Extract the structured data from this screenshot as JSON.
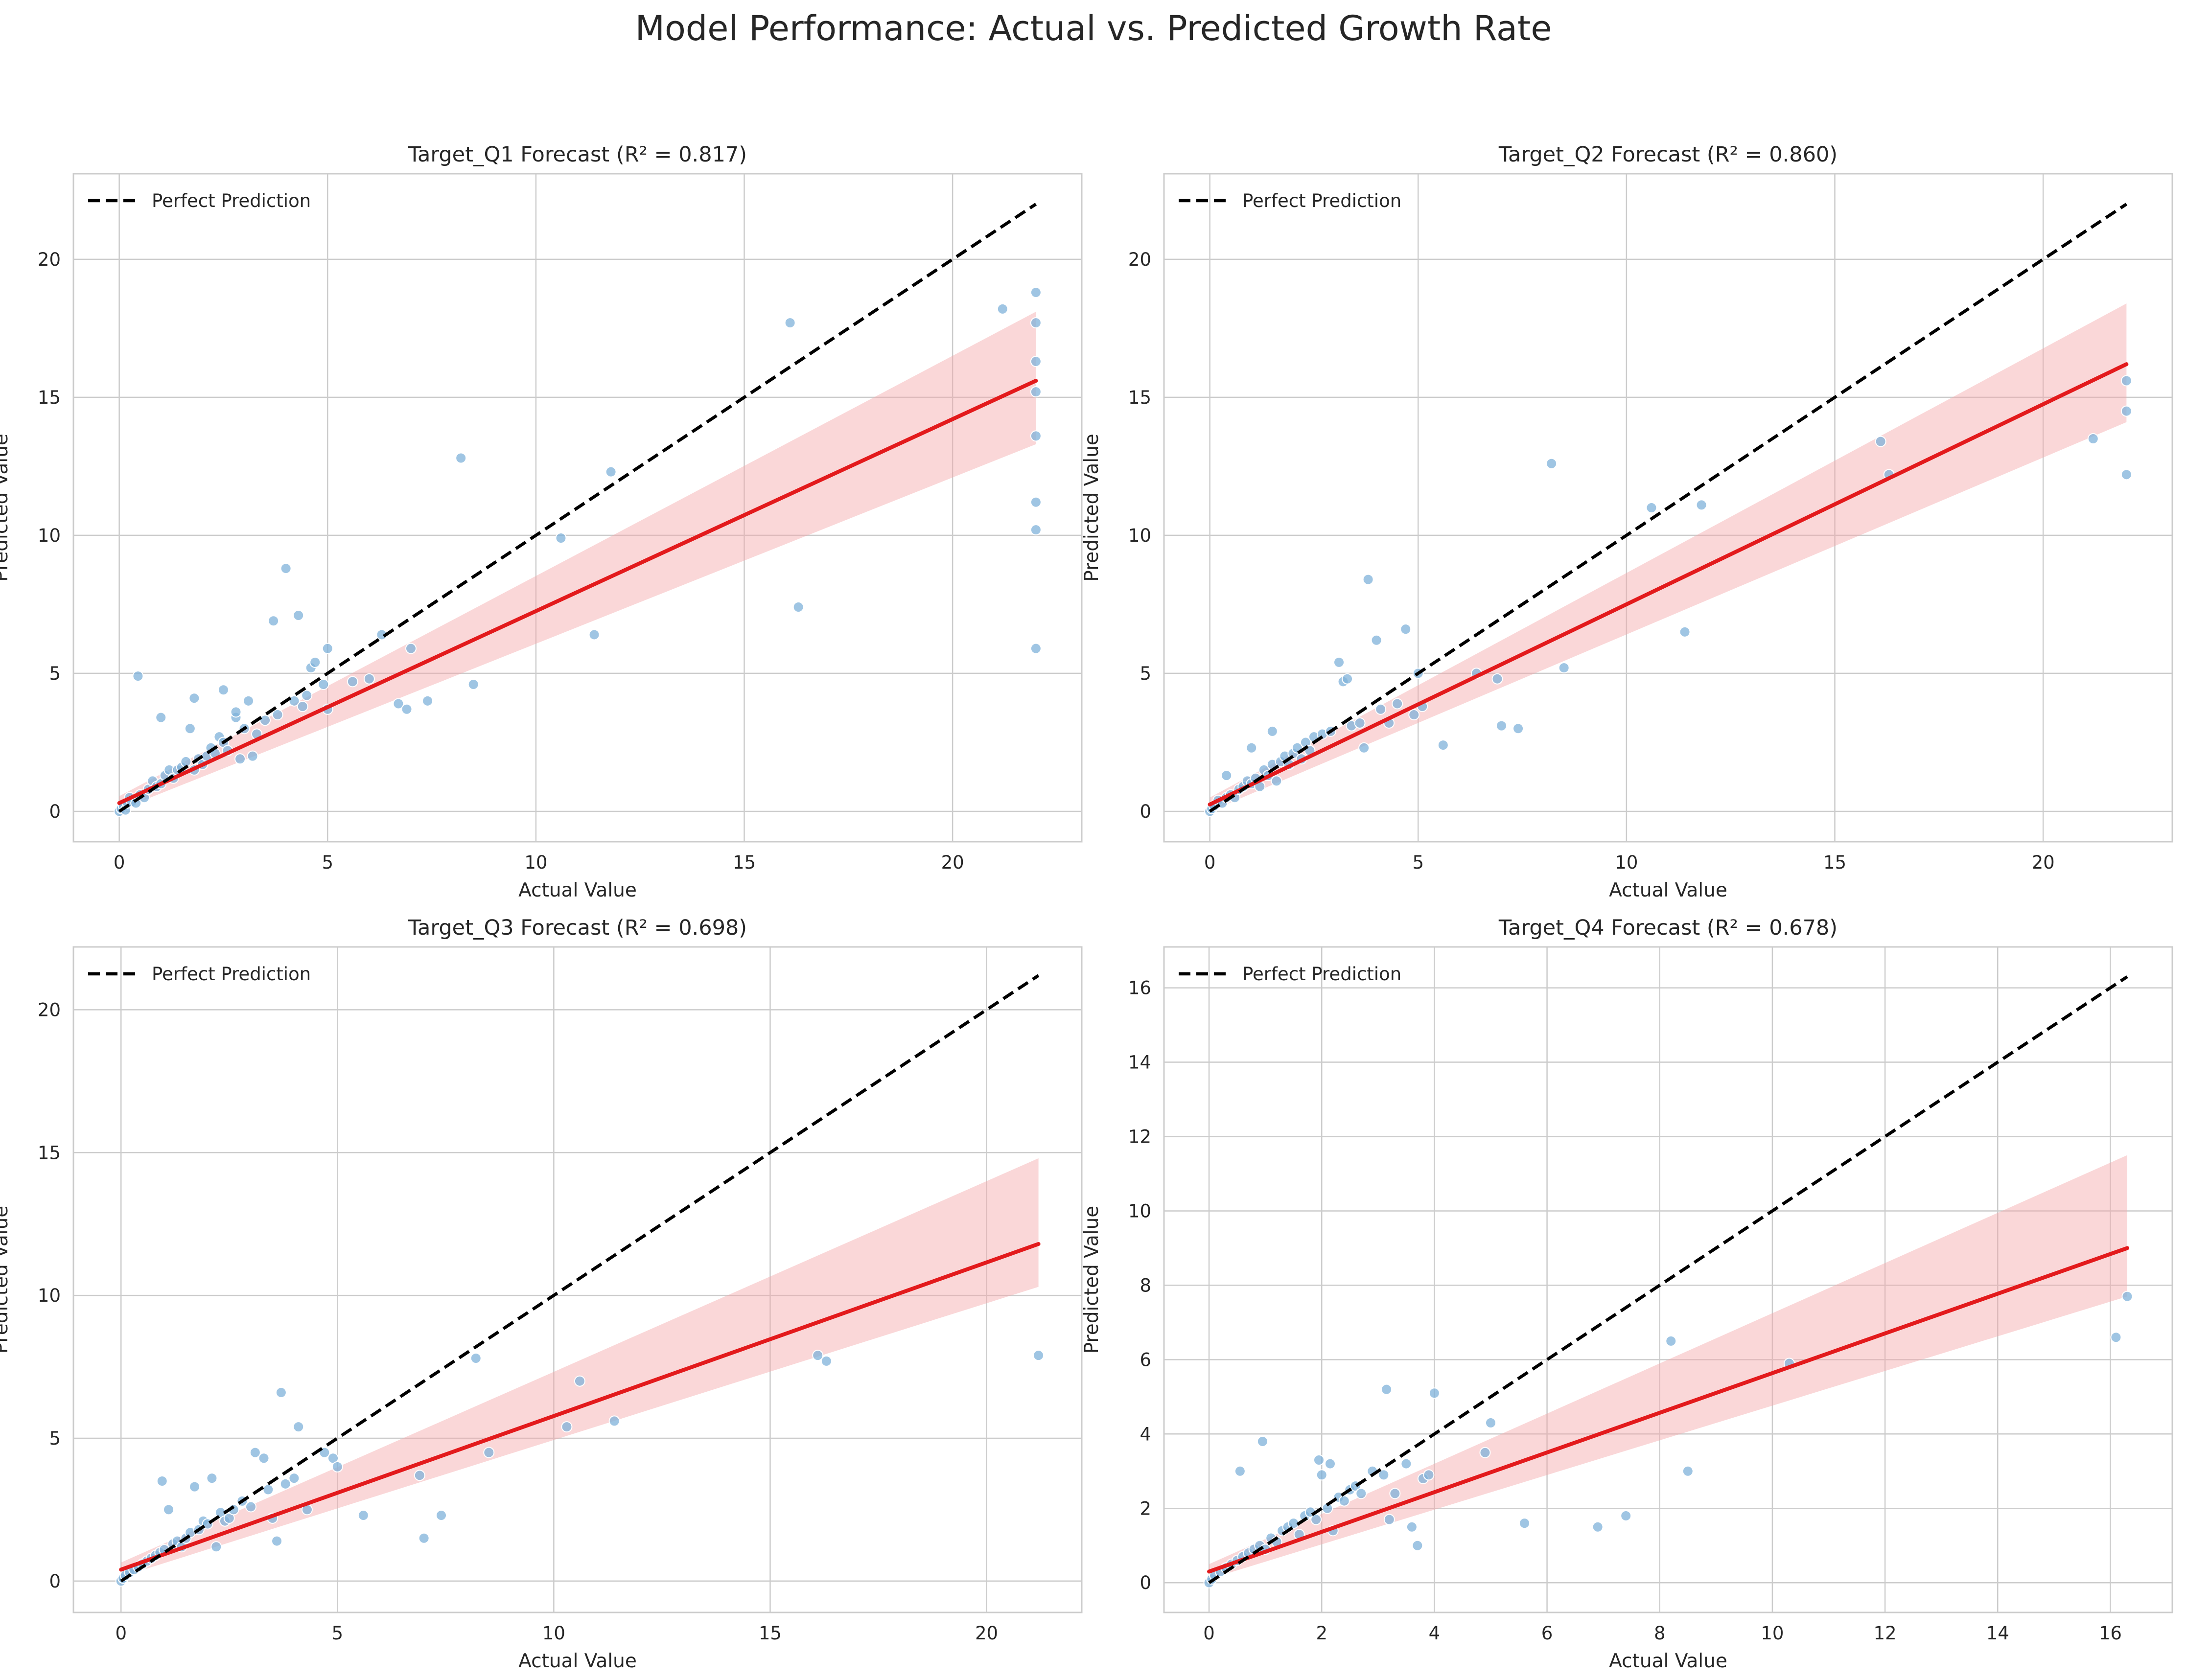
{
  "figure_title": "Model Performance: Actual vs. Predicted Growth Rate",
  "chart_data": [
    {
      "type": "scatter",
      "title": "Target_Q1 Forecast (R² = 0.817)",
      "xlabel": "Actual Value",
      "ylabel": "Predicted Value",
      "xlim": [
        -1.1,
        23.1
      ],
      "ylim": [
        -1.1,
        23.1
      ],
      "xticks": [
        0,
        5,
        10,
        15,
        20
      ],
      "yticks": [
        0,
        5,
        10,
        15,
        20
      ],
      "grid": true,
      "legend": {
        "position": "top-left",
        "entries": [
          "Perfect Prediction"
        ]
      },
      "perfect_line": [
        [
          0,
          0
        ],
        [
          22,
          22
        ]
      ],
      "regression": {
        "x": [
          0,
          22
        ],
        "y": [
          0.3,
          15.6
        ],
        "ci_low_end": 13.3,
        "ci_high_end": 18.1,
        "ci_low_start": 0.05,
        "ci_high_start": 0.55
      },
      "points": [
        [
          0,
          0
        ],
        [
          0.05,
          0.1
        ],
        [
          0.1,
          0.2
        ],
        [
          0.15,
          0.05
        ],
        [
          0.2,
          0.3
        ],
        [
          0.25,
          0.5
        ],
        [
          0.3,
          0.35
        ],
        [
          0.4,
          0.3
        ],
        [
          0.5,
          0.6
        ],
        [
          0.45,
          4.9
        ],
        [
          0.6,
          0.5
        ],
        [
          0.7,
          0.8
        ],
        [
          0.8,
          1.1
        ],
        [
          0.9,
          0.9
        ],
        [
          1.0,
          1.0
        ],
        [
          1.0,
          3.4
        ],
        [
          1.1,
          1.3
        ],
        [
          1.2,
          1.5
        ],
        [
          1.3,
          1.2
        ],
        [
          1.4,
          1.5
        ],
        [
          1.5,
          1.6
        ],
        [
          1.6,
          1.8
        ],
        [
          1.7,
          3.0
        ],
        [
          1.8,
          1.5
        ],
        [
          1.8,
          4.1
        ],
        [
          1.9,
          1.9
        ],
        [
          2.0,
          1.7
        ],
        [
          2.1,
          2.0
        ],
        [
          2.2,
          2.3
        ],
        [
          2.3,
          2.1
        ],
        [
          2.4,
          2.7
        ],
        [
          2.5,
          2.5
        ],
        [
          2.5,
          4.4
        ],
        [
          2.6,
          2.2
        ],
        [
          2.8,
          3.4
        ],
        [
          2.8,
          3.6
        ],
        [
          2.9,
          1.9
        ],
        [
          3.0,
          3.0
        ],
        [
          3.1,
          4.0
        ],
        [
          3.2,
          2.0
        ],
        [
          3.3,
          2.8
        ],
        [
          3.5,
          3.3
        ],
        [
          3.7,
          6.9
        ],
        [
          3.8,
          3.5
        ],
        [
          4.0,
          8.8
        ],
        [
          4.2,
          4.0
        ],
        [
          4.3,
          7.1
        ],
        [
          4.4,
          3.8
        ],
        [
          4.5,
          4.2
        ],
        [
          4.6,
          5.2
        ],
        [
          4.7,
          5.4
        ],
        [
          4.9,
          4.6
        ],
        [
          5.0,
          5.9
        ],
        [
          5.0,
          3.7
        ],
        [
          5.6,
          4.7
        ],
        [
          6.0,
          4.8
        ],
        [
          6.3,
          6.4
        ],
        [
          6.7,
          3.9
        ],
        [
          6.9,
          3.7
        ],
        [
          7.0,
          5.9
        ],
        [
          7.4,
          4.0
        ],
        [
          8.2,
          12.8
        ],
        [
          8.5,
          4.6
        ],
        [
          10.6,
          9.9
        ],
        [
          11.4,
          6.4
        ],
        [
          11.8,
          12.3
        ],
        [
          16.1,
          17.7
        ],
        [
          16.3,
          7.4
        ],
        [
          21.2,
          18.2
        ],
        [
          22,
          18.8
        ],
        [
          22,
          17.7
        ],
        [
          22,
          16.3
        ],
        [
          22,
          15.2
        ],
        [
          22,
          13.6
        ],
        [
          22,
          11.2
        ],
        [
          22,
          10.2
        ],
        [
          22,
          5.9
        ]
      ]
    },
    {
      "type": "scatter",
      "title": "Target_Q2 Forecast (R² = 0.860)",
      "xlabel": "Actual Value",
      "ylabel": "Predicted Value",
      "xlim": [
        -1.1,
        23.1
      ],
      "ylim": [
        -1.1,
        23.1
      ],
      "xticks": [
        0,
        5,
        10,
        15,
        20
      ],
      "yticks": [
        0,
        5,
        10,
        15,
        20
      ],
      "grid": true,
      "legend": {
        "position": "top-left",
        "entries": [
          "Perfect Prediction"
        ]
      },
      "perfect_line": [
        [
          0,
          0
        ],
        [
          22,
          22
        ]
      ],
      "regression": {
        "x": [
          0,
          22
        ],
        "y": [
          0.25,
          16.2
        ],
        "ci_low_end": 14.1,
        "ci_high_end": 18.4,
        "ci_low_start": 0.0,
        "ci_high_start": 0.5
      },
      "points": [
        [
          0,
          0
        ],
        [
          0.05,
          0.1
        ],
        [
          0.1,
          0.2
        ],
        [
          0.2,
          0.4
        ],
        [
          0.3,
          0.3
        ],
        [
          0.4,
          0.5
        ],
        [
          0.4,
          1.3
        ],
        [
          0.5,
          0.6
        ],
        [
          0.6,
          0.5
        ],
        [
          0.7,
          0.8
        ],
        [
          0.8,
          0.9
        ],
        [
          0.9,
          1.1
        ],
        [
          1.0,
          2.3
        ],
        [
          1.0,
          1.0
        ],
        [
          1.1,
          1.2
        ],
        [
          1.2,
          0.9
        ],
        [
          1.3,
          1.5
        ],
        [
          1.4,
          1.3
        ],
        [
          1.5,
          1.7
        ],
        [
          1.5,
          2.9
        ],
        [
          1.6,
          1.1
        ],
        [
          1.7,
          1.8
        ],
        [
          1.8,
          2.0
        ],
        [
          1.9,
          1.7
        ],
        [
          2.0,
          2.1
        ],
        [
          2.1,
          2.3
        ],
        [
          2.2,
          1.9
        ],
        [
          2.3,
          2.5
        ],
        [
          2.4,
          2.2
        ],
        [
          2.5,
          2.7
        ],
        [
          2.7,
          2.8
        ],
        [
          2.9,
          2.9
        ],
        [
          3.1,
          5.4
        ],
        [
          3.2,
          4.7
        ],
        [
          3.3,
          4.8
        ],
        [
          3.4,
          3.1
        ],
        [
          3.6,
          3.2
        ],
        [
          3.7,
          2.3
        ],
        [
          3.8,
          8.4
        ],
        [
          4.0,
          6.2
        ],
        [
          4.1,
          3.7
        ],
        [
          4.3,
          3.2
        ],
        [
          4.5,
          3.9
        ],
        [
          4.7,
          6.6
        ],
        [
          4.9,
          3.5
        ],
        [
          5.0,
          5.0
        ],
        [
          5.1,
          3.8
        ],
        [
          5.6,
          2.4
        ],
        [
          6.4,
          5.0
        ],
        [
          6.9,
          4.8
        ],
        [
          7.0,
          3.1
        ],
        [
          7.4,
          3.0
        ],
        [
          8.2,
          12.6
        ],
        [
          8.5,
          5.2
        ],
        [
          10.6,
          11.0
        ],
        [
          11.4,
          6.5
        ],
        [
          11.8,
          11.1
        ],
        [
          16.1,
          13.4
        ],
        [
          16.3,
          12.2
        ],
        [
          21.2,
          13.5
        ],
        [
          22,
          15.6
        ],
        [
          22,
          14.5
        ],
        [
          22,
          12.2
        ]
      ]
    },
    {
      "type": "scatter",
      "title": "Target_Q3 Forecast (R² = 0.698)",
      "xlabel": "Actual Value",
      "ylabel": "Predicted Value",
      "xlim": [
        -1.1,
        22.2
      ],
      "ylim": [
        -1.1,
        22.2
      ],
      "xticks": [
        0,
        5,
        10,
        15,
        20
      ],
      "yticks": [
        0,
        5,
        10,
        15,
        20
      ],
      "grid": true,
      "legend": {
        "position": "top-left",
        "entries": [
          "Perfect Prediction"
        ]
      },
      "perfect_line": [
        [
          0,
          0
        ],
        [
          21.2,
          21.2
        ]
      ],
      "regression": {
        "x": [
          0,
          21.2
        ],
        "y": [
          0.4,
          11.8
        ],
        "ci_low_end": 10.3,
        "ci_high_end": 14.8,
        "ci_low_start": 0.15,
        "ci_high_start": 0.65
      },
      "points": [
        [
          0,
          0
        ],
        [
          0.05,
          0.1
        ],
        [
          0.1,
          0.2
        ],
        [
          0.2,
          0.3
        ],
        [
          0.3,
          0.4
        ],
        [
          0.4,
          0.5
        ],
        [
          0.5,
          0.6
        ],
        [
          0.6,
          0.7
        ],
        [
          0.7,
          0.8
        ],
        [
          0.8,
          0.9
        ],
        [
          0.9,
          1.0
        ],
        [
          0.95,
          3.5
        ],
        [
          1.0,
          1.1
        ],
        [
          1.1,
          2.5
        ],
        [
          1.2,
          1.3
        ],
        [
          1.3,
          1.4
        ],
        [
          1.4,
          1.2
        ],
        [
          1.5,
          1.5
        ],
        [
          1.6,
          1.7
        ],
        [
          1.7,
          3.3
        ],
        [
          1.8,
          1.8
        ],
        [
          1.9,
          2.1
        ],
        [
          2.0,
          2.0
        ],
        [
          2.1,
          3.6
        ],
        [
          2.2,
          1.2
        ],
        [
          2.3,
          2.4
        ],
        [
          2.4,
          2.1
        ],
        [
          2.5,
          2.2
        ],
        [
          2.6,
          2.5
        ],
        [
          2.8,
          2.8
        ],
        [
          3.0,
          2.6
        ],
        [
          3.1,
          4.5
        ],
        [
          3.3,
          4.3
        ],
        [
          3.4,
          3.2
        ],
        [
          3.5,
          2.2
        ],
        [
          3.6,
          1.4
        ],
        [
          3.7,
          6.6
        ],
        [
          3.8,
          3.4
        ],
        [
          4.0,
          3.6
        ],
        [
          4.1,
          5.4
        ],
        [
          4.3,
          2.5
        ],
        [
          4.7,
          4.5
        ],
        [
          4.9,
          4.3
        ],
        [
          5.0,
          4.0
        ],
        [
          5.6,
          2.3
        ],
        [
          6.9,
          3.7
        ],
        [
          7.0,
          1.5
        ],
        [
          7.4,
          2.3
        ],
        [
          8.2,
          7.8
        ],
        [
          8.5,
          4.5
        ],
        [
          10.3,
          5.4
        ],
        [
          10.6,
          7.0
        ],
        [
          11.4,
          5.6
        ],
        [
          16.1,
          7.9
        ],
        [
          16.3,
          7.7
        ],
        [
          21.2,
          7.9
        ]
      ]
    },
    {
      "type": "scatter",
      "title": "Target_Q4 Forecast (R² = 0.678)",
      "xlabel": "Actual Value",
      "ylabel": "Predicted Value",
      "xlim": [
        -0.8,
        17.1
      ],
      "ylim": [
        -0.8,
        17.1
      ],
      "xticks": [
        0,
        2,
        4,
        6,
        8,
        10,
        12,
        14,
        16
      ],
      "yticks": [
        0,
        2,
        4,
        6,
        8,
        10,
        12,
        14,
        16
      ],
      "grid": true,
      "legend": {
        "position": "top-left",
        "entries": [
          "Perfect Prediction"
        ]
      },
      "perfect_line": [
        [
          0,
          0
        ],
        [
          16.3,
          16.3
        ]
      ],
      "regression": {
        "x": [
          0,
          16.3
        ],
        "y": [
          0.3,
          9.0
        ],
        "ci_low_end": 7.7,
        "ci_high_end": 11.5,
        "ci_low_start": 0.1,
        "ci_high_start": 0.5
      },
      "points": [
        [
          0,
          0
        ],
        [
          0.05,
          0.1
        ],
        [
          0.1,
          0.2
        ],
        [
          0.2,
          0.3
        ],
        [
          0.3,
          0.4
        ],
        [
          0.4,
          0.5
        ],
        [
          0.5,
          0.6
        ],
        [
          0.55,
          3.0
        ],
        [
          0.6,
          0.7
        ],
        [
          0.7,
          0.8
        ],
        [
          0.8,
          0.9
        ],
        [
          0.9,
          1.0
        ],
        [
          0.95,
          3.8
        ],
        [
          1.0,
          0.9
        ],
        [
          1.1,
          1.2
        ],
        [
          1.2,
          1.1
        ],
        [
          1.3,
          1.4
        ],
        [
          1.4,
          1.5
        ],
        [
          1.5,
          1.6
        ],
        [
          1.6,
          1.3
        ],
        [
          1.7,
          1.8
        ],
        [
          1.8,
          1.9
        ],
        [
          1.9,
          1.7
        ],
        [
          1.95,
          3.3
        ],
        [
          2.0,
          2.9
        ],
        [
          2.1,
          2.0
        ],
        [
          2.15,
          3.2
        ],
        [
          2.2,
          1.4
        ],
        [
          2.3,
          2.3
        ],
        [
          2.4,
          2.2
        ],
        [
          2.5,
          2.5
        ],
        [
          2.6,
          2.6
        ],
        [
          2.7,
          2.4
        ],
        [
          2.9,
          3.0
        ],
        [
          3.1,
          2.9
        ],
        [
          3.15,
          5.2
        ],
        [
          3.2,
          1.7
        ],
        [
          3.3,
          2.4
        ],
        [
          3.5,
          3.2
        ],
        [
          3.6,
          1.5
        ],
        [
          3.7,
          1.0
        ],
        [
          3.8,
          2.8
        ],
        [
          3.9,
          2.9
        ],
        [
          4.0,
          5.1
        ],
        [
          4.9,
          3.5
        ],
        [
          5.0,
          4.3
        ],
        [
          5.6,
          1.6
        ],
        [
          6.9,
          1.5
        ],
        [
          7.4,
          1.8
        ],
        [
          8.2,
          6.5
        ],
        [
          8.5,
          3.0
        ],
        [
          10.3,
          5.9
        ],
        [
          16.1,
          6.6
        ],
        [
          16.3,
          7.7
        ]
      ]
    }
  ]
}
